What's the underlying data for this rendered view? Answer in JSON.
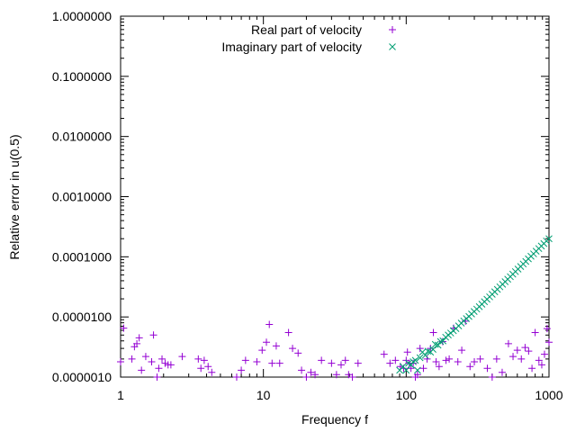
{
  "chart_data": {
    "type": "scatter",
    "xlabel": "Frequency f",
    "ylabel": "Relative error in u(0.5)",
    "xscale": "log",
    "yscale": "log",
    "xlim": [
      1,
      1000
    ],
    "ylim": [
      1e-06,
      1
    ],
    "grid": false,
    "legend_position": "top-center",
    "x_ticks": [
      {
        "value": 1,
        "label": "1"
      },
      {
        "value": 10,
        "label": "10"
      },
      {
        "value": 100,
        "label": "100"
      },
      {
        "value": 1000,
        "label": "1000"
      }
    ],
    "y_ticks": [
      {
        "value": 1e-06,
        "label": "0.0000010"
      },
      {
        "value": 1e-05,
        "label": "0.0000100"
      },
      {
        "value": 0.0001,
        "label": "0.0001000"
      },
      {
        "value": 0.001,
        "label": "0.0010000"
      },
      {
        "value": 0.01,
        "label": "0.0100000"
      },
      {
        "value": 0.1,
        "label": "0.1000000"
      },
      {
        "value": 1,
        "label": "1.0000000"
      }
    ],
    "series": [
      {
        "name": "Real part of velocity",
        "marker": "plus",
        "color": "#9400d3",
        "points": [
          [
            1.0,
            1.8e-06
          ],
          [
            1.05,
            6.5e-06
          ],
          [
            1.2,
            2e-06
          ],
          [
            1.25,
            3.2e-06
          ],
          [
            1.3,
            3.6e-06
          ],
          [
            1.35,
            4.5e-06
          ],
          [
            1.4,
            1.3e-06
          ],
          [
            1.5,
            2.2e-06
          ],
          [
            1.65,
            1.8e-06
          ],
          [
            1.7,
            5e-06
          ],
          [
            1.8,
            1e-06
          ],
          [
            1.85,
            1.4e-06
          ],
          [
            1.95,
            2e-06
          ],
          [
            2.05,
            1.7e-06
          ],
          [
            2.15,
            1.6e-06
          ],
          [
            2.25,
            1.6e-06
          ],
          [
            2.7,
            2.2e-06
          ],
          [
            3.5,
            2e-06
          ],
          [
            3.65,
            1.4e-06
          ],
          [
            3.85,
            1.9e-06
          ],
          [
            4.1,
            1.5e-06
          ],
          [
            4.35,
            1.2e-06
          ],
          [
            6.5,
            1e-06
          ],
          [
            7.0,
            1.3e-06
          ],
          [
            7.5,
            1.9e-06
          ],
          [
            9.0,
            1.8e-06
          ],
          [
            9.8,
            2.8e-06
          ],
          [
            10.5,
            3.8e-06
          ],
          [
            11.0,
            7.5e-06
          ],
          [
            11.5,
            1.7e-06
          ],
          [
            12.3,
            3.3e-06
          ],
          [
            13.0,
            1.7e-06
          ],
          [
            15.0,
            5.5e-06
          ],
          [
            16.0,
            3e-06
          ],
          [
            17.5,
            2.5e-06
          ],
          [
            18.5,
            1.3e-06
          ],
          [
            20.0,
            1e-06
          ],
          [
            21.5,
            1.2e-06
          ],
          [
            23.0,
            1.1e-06
          ],
          [
            25.5,
            1.9e-06
          ],
          [
            30.0,
            1.7e-06
          ],
          [
            32.5,
            1.1e-06
          ],
          [
            35.0,
            1.6e-06
          ],
          [
            37.5,
            1.9e-06
          ],
          [
            39.5,
            1.1e-06
          ],
          [
            42.0,
            1e-06
          ],
          [
            46.0,
            1.7e-06
          ],
          [
            70.0,
            2.4e-06
          ],
          [
            77.0,
            1.7e-06
          ],
          [
            84.0,
            1.9e-06
          ],
          [
            91.0,
            1.5e-06
          ],
          [
            96.0,
            1.4e-06
          ],
          [
            100.0,
            1.9e-06
          ],
          [
            102.0,
            2.6e-06
          ],
          [
            105.0,
            1.7e-06
          ],
          [
            108.0,
            1.4e-06
          ],
          [
            112.0,
            1.7e-06
          ],
          [
            116.0,
            1e-06
          ],
          [
            120.0,
            1.1e-06
          ],
          [
            125.0,
            3e-06
          ],
          [
            132.0,
            1.4e-06
          ],
          [
            140.0,
            2e-06
          ],
          [
            148.0,
            3e-06
          ],
          [
            155.0,
            5.5e-06
          ],
          [
            162.0,
            1.8e-06
          ],
          [
            170.0,
            1.5e-06
          ],
          [
            180.0,
            3.9e-06
          ],
          [
            190.0,
            1.9e-06
          ],
          [
            200.0,
            2e-06
          ],
          [
            215.0,
            6.5e-06
          ],
          [
            230.0,
            1.8e-06
          ],
          [
            245.0,
            2.8e-06
          ],
          [
            260.0,
            8.5e-06
          ],
          [
            280.0,
            1.5e-06
          ],
          [
            300.0,
            1.8e-06
          ],
          [
            330.0,
            2e-06
          ],
          [
            370.0,
            1.4e-06
          ],
          [
            400.0,
            1e-06
          ],
          [
            430.0,
            2e-06
          ],
          [
            470.0,
            1.2e-06
          ],
          [
            520.0,
            3.6e-06
          ],
          [
            560.0,
            2.2e-06
          ],
          [
            600.0,
            2.8e-06
          ],
          [
            640.0,
            2e-06
          ],
          [
            680.0,
            3.1e-06
          ],
          [
            720.0,
            2.7e-06
          ],
          [
            760.0,
            1.4e-06
          ],
          [
            800.0,
            5.5e-06
          ],
          [
            850.0,
            1.9e-06
          ],
          [
            890.0,
            1.6e-06
          ],
          [
            930.0,
            2.4e-06
          ],
          [
            970.0,
            6.4e-06
          ],
          [
            1000.0,
            3.8e-06
          ]
        ]
      },
      {
        "name": "Imaginary part of velocity",
        "marker": "cross",
        "color": "#009e73",
        "points": [
          [
            90.0,
            1.3e-06
          ],
          [
            95.0,
            1.5e-06
          ],
          [
            100.0,
            1.3e-06
          ],
          [
            104.0,
            1.7e-06
          ],
          [
            108.0,
            1.6e-06
          ],
          [
            112.0,
            1.8e-06
          ],
          [
            116.0,
            1.9e-06
          ],
          [
            120.0,
            1.3e-06
          ],
          [
            125.0,
            2.1e-06
          ],
          [
            130.0,
            2.6e-06
          ],
          [
            136.0,
            2.3e-06
          ],
          [
            142.0,
            2.7e-06
          ],
          [
            148.0,
            2.6e-06
          ],
          [
            154.0,
            2.9e-06
          ],
          [
            160.0,
            3.5e-06
          ],
          [
            167.0,
            3.4e-06
          ],
          [
            174.0,
            3.9e-06
          ],
          [
            181.0,
            4e-06
          ],
          [
            189.0,
            4.6e-06
          ],
          [
            197.0,
            5e-06
          ],
          [
            205.0,
            5.4e-06
          ],
          [
            214.0,
            5.9e-06
          ],
          [
            223.0,
            6.4e-06
          ],
          [
            233.0,
            7.1e-06
          ],
          [
            243.0,
            7.9e-06
          ],
          [
            253.0,
            8.6e-06
          ],
          [
            264.0,
            9.4e-06
          ],
          [
            275.0,
            1.02e-05
          ],
          [
            287.0,
            1.12e-05
          ],
          [
            299.0,
            1.23e-05
          ],
          [
            312.0,
            1.35e-05
          ],
          [
            325.0,
            1.48e-05
          ],
          [
            339.0,
            1.63e-05
          ],
          [
            353.0,
            1.79e-05
          ],
          [
            368.0,
            1.97e-05
          ],
          [
            384.0,
            2.16e-05
          ],
          [
            400.0,
            2.38e-05
          ],
          [
            417.0,
            2.62e-05
          ],
          [
            435.0,
            2.88e-05
          ],
          [
            453.0,
            3.17e-05
          ],
          [
            473.0,
            3.49e-05
          ],
          [
            493.0,
            3.85e-05
          ],
          [
            514.0,
            4.24e-05
          ],
          [
            536.0,
            4.67e-05
          ],
          [
            558.0,
            5.15e-05
          ],
          [
            582.0,
            5.67e-05
          ],
          [
            607.0,
            6.25e-05
          ],
          [
            633.0,
            6.89e-05
          ],
          [
            660.0,
            7.6e-05
          ],
          [
            688.0,
            8.38e-05
          ],
          [
            717.0,
            9.24e-05
          ],
          [
            748.0,
            0.000102
          ],
          [
            780.0,
            0.000112
          ],
          [
            813.0,
            0.000124
          ],
          [
            848.0,
            0.000137
          ],
          [
            884.0,
            0.000151
          ],
          [
            921.0,
            0.000166
          ],
          [
            960.0,
            0.000183
          ],
          [
            1000.0,
            0.0002
          ]
        ]
      }
    ]
  }
}
